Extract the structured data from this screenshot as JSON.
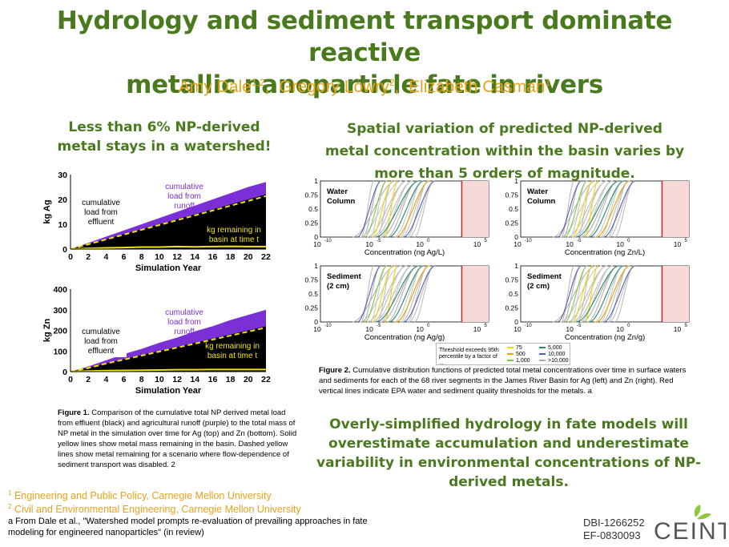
{
  "title_line1": "Hydrology and sediment transport dominate reactive",
  "title_line2": "metallic nanoparticle fate in rivers",
  "authors": [
    {
      "name": "Amy Dale",
      "sup": "1,2"
    },
    {
      "name": "Gregory Lowry",
      "sup": "2"
    },
    {
      "name": "Elizabeth Casman",
      "sup": "1"
    }
  ],
  "left_heading_1": "Less than 6% NP-derived",
  "left_heading_2": "metal stays in a watershed!",
  "right_heading_1": "Spatial variation of predicted NP-derived",
  "right_heading_2": "metal concentration within the basin varies by",
  "right_heading_3": "more than 5 orders of magnitude.",
  "chart_data": [
    {
      "type": "area",
      "ylabel": "kg Ag",
      "xlabel": "Simulation Year",
      "xlim": [
        0,
        22
      ],
      "ylim": [
        0,
        30
      ],
      "x_ticks": [
        "0",
        "2",
        "4",
        "6",
        "8",
        "10",
        "12",
        "14",
        "16",
        "18",
        "20",
        "22"
      ],
      "y_ticks": [
        "0",
        "10",
        "20",
        "30"
      ],
      "x": [
        0,
        2,
        4,
        6,
        8,
        10,
        12,
        14,
        16,
        18,
        20,
        22
      ],
      "series": [
        {
          "name": "cumulative load from runoff",
          "color": "#7b2fd6",
          "values": [
            0,
            2.5,
            5,
            7.5,
            10,
            12.5,
            15,
            17.5,
            20,
            22.5,
            25,
            27
          ]
        },
        {
          "name": "cumulative load from effluent",
          "color": "#000000",
          "values": [
            0,
            2,
            4,
            6,
            8,
            10,
            12,
            14,
            16,
            18,
            20,
            22
          ]
        },
        {
          "name": "kg remaining in basin at time t",
          "color": "#f2e600",
          "values": [
            0,
            0.3,
            0.5,
            0.6,
            0.8,
            0.8,
            1,
            0.9,
            1,
            1.1,
            1,
            1
          ]
        }
      ],
      "annotations": [
        "cumulative load from runoff",
        "cumulative load from effluent",
        "kg remaining in basin at time t"
      ]
    },
    {
      "type": "area",
      "ylabel": "kg Zn",
      "xlabel": "Simulation Year",
      "xlim": [
        0,
        22
      ],
      "ylim": [
        0,
        400
      ],
      "x_ticks": [
        "0",
        "2",
        "4",
        "6",
        "8",
        "10",
        "12",
        "14",
        "16",
        "18",
        "20",
        "22"
      ],
      "y_ticks": [
        "0",
        "100",
        "200",
        "300",
        "400"
      ],
      "x": [
        0,
        2,
        4,
        6,
        8,
        10,
        12,
        14,
        16,
        18,
        20,
        22
      ],
      "series": [
        {
          "name": "cumulative load from runoff",
          "color": "#7b2fd6",
          "values": [
            0,
            25,
            55,
            85,
            110,
            140,
            165,
            195,
            220,
            250,
            275,
            300
          ]
        },
        {
          "name": "cumulative load from effluent",
          "color": "#000000",
          "values": [
            0,
            18,
            40,
            60,
            80,
            100,
            120,
            140,
            160,
            180,
            200,
            220
          ]
        },
        {
          "name": "kg remaining in basin at time t",
          "color": "#f2e600",
          "values": [
            0,
            3,
            5,
            6,
            7,
            8,
            9,
            9,
            10,
            10,
            10,
            10
          ]
        }
      ],
      "annotations": [
        "cumulative load from runoff",
        "cumulative load from effluent",
        "kg remaining in basin at time t"
      ]
    }
  ],
  "cdf_panels": [
    {
      "label_1": "Water",
      "label_2": "Column",
      "xlabel": "Concentration (ng Ag/L)",
      "threshold_color": "#d62020"
    },
    {
      "label_1": "Water",
      "label_2": "Column",
      "xlabel": "Concentration (ng Zn/L)",
      "threshold_color": "#d62020"
    },
    {
      "label_1": "Sediment",
      "label_2": "(2 cm)",
      "xlabel": "Concentration (ng Ag/g)",
      "threshold_color": "#d62020"
    },
    {
      "label_1": "Sediment",
      "label_2": "(2 cm)",
      "xlabel": "Concentration (ng Zn/g)",
      "threshold_color": "#d62020"
    }
  ],
  "cdf_axis": {
    "y_ticks": [
      "1",
      "0.75",
      "0.5",
      "0.25",
      "0"
    ],
    "x_ticks": [
      "10",
      "10",
      "10",
      "10"
    ],
    "x_exps": [
      "-10",
      "-5",
      "0",
      "5"
    ]
  },
  "legend": {
    "title_1": "Threshold exceeds 95th",
    "title_2": "percentile by a factor of ...",
    "items": [
      {
        "label": "75",
        "color": "#f2d600"
      },
      {
        "label": "5,000",
        "color": "#2a8a6a"
      },
      {
        "label": "500",
        "color": "#f0a000"
      },
      {
        "label": "10,000",
        "color": "#4a5fb0"
      },
      {
        "label": "1,000",
        "color": "#7ac943"
      },
      {
        "label": ">10,000",
        "color": "#aaaaaa"
      }
    ]
  },
  "fig1_caption": {
    "label": "Figure 1.",
    "text": "Comparison of the cumulative total NP derived metal load from effluent (black) and agricultural runoff (purple) to the total mass of NP metal in the simulation over time for Ag (top) and Zn (bottom). Solid yellow lines show metal mass remaining in the basin. Dashed yellow lines show metal remaining for a scenario where flow-dependence of sediment transport was disabled. 2"
  },
  "fig2_caption": {
    "label": "Figure 2.",
    "text": "Cumulative distribution functions of predicted total metal concentrations over time in surface waters and sediments for each of the 68 river segments in the James River Basin for Ag (left) and Zn (right). Red vertical lines indicate EPA water and sediment quality thresholds for the metals. a"
  },
  "conclusion_1": "Overly-simplified hydrology in fate models will",
  "conclusion_2": "overestimate accumulation and underestimate",
  "conclusion_3": "variability in environmental concentrations of NP-",
  "conclusion_4": "derived metals.",
  "affiliations": [
    {
      "sup": "1",
      "text": "Engineering and Public Policy, Carnegie Mellon University"
    },
    {
      "sup": "2",
      "text": "Civil and Environmental Engineering, Carnegie Mellon University"
    }
  ],
  "reference_1": "a From Dale et al., \"Watershed model prompts re-evaluation of prevailing approaches in fate",
  "reference_2": "modeling for engineered nanoparticles\" (in review)",
  "grant_1": "DBI-1266252",
  "grant_2": "EF-0830093",
  "logo_text": "CEINT",
  "colors": {
    "accent_green": "#4a7a1e",
    "author_orange": "#e8a21c",
    "purple": "#7b2fd6",
    "yellow": "#f2e600"
  }
}
